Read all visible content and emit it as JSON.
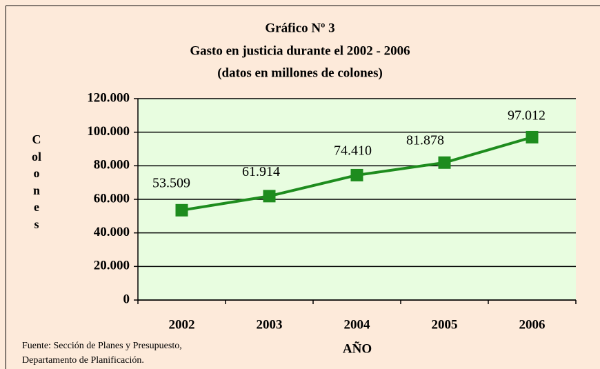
{
  "chart_data": {
    "type": "line",
    "title": [
      "Gráfico Nº 3",
      "Gasto en justicia durante el 2002 - 2006",
      "(datos en millones de colones)"
    ],
    "x_label": "AÑO",
    "y_label": "Colones",
    "categories": [
      "2002",
      "2003",
      "2004",
      "2005",
      "2006"
    ],
    "values": [
      53509,
      61914,
      74410,
      81878,
      97012
    ],
    "value_labels": [
      "53.509",
      "61.914",
      "74.410",
      "81.878",
      "97.012"
    ],
    "color": "#1e8c1e",
    "ylim": [
      0,
      120000
    ],
    "yticks": [
      0,
      {
        "value": 20000,
        "label": "20.000"
      },
      {
        "value": 40000,
        "label": "40.000"
      },
      {
        "value": 60000,
        "label": "60.000"
      },
      {
        "value": 80000,
        "label": "80.000"
      },
      {
        "value": 100000,
        "label": "100.000"
      },
      {
        "value": 120000,
        "label": "120.000"
      }
    ],
    "grid": true,
    "source": [
      "Fuente: Sección de Planes y Presupuesto,",
      "Departamento de Planificación."
    ]
  }
}
